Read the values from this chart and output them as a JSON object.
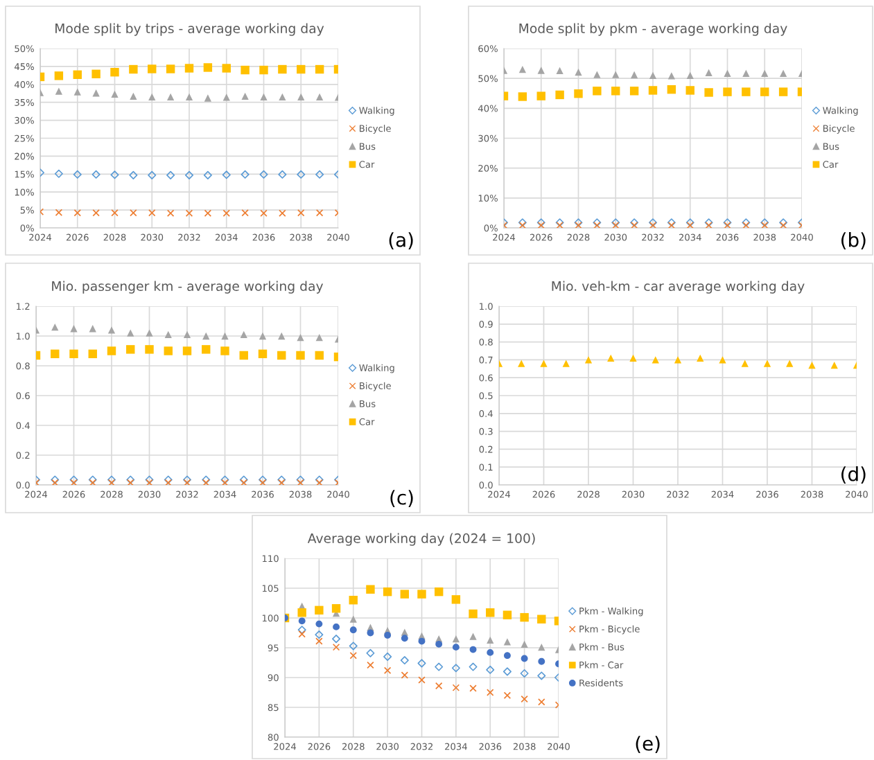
{
  "chart_data": [
    {
      "type": "scatter",
      "title": "Mode split by trips - average working day",
      "annotations": [
        "(a)"
      ],
      "x": [
        2024,
        2025,
        2026,
        2027,
        2028,
        2029,
        2030,
        2031,
        2032,
        2033,
        2034,
        2035,
        2036,
        2037,
        2038,
        2039,
        2040
      ],
      "xlim": [
        2024,
        2040
      ],
      "xticks": [
        2024,
        2026,
        2028,
        2030,
        2032,
        2034,
        2036,
        2038,
        2040
      ],
      "ylim": [
        0,
        50
      ],
      "yticks": [
        {
          "value": 0,
          "label": "0%"
        },
        {
          "value": 5,
          "label": "5%"
        },
        {
          "value": 10,
          "label": "10%"
        },
        {
          "value": 15,
          "label": "15%"
        },
        {
          "value": 20,
          "label": "20%"
        },
        {
          "value": 25,
          "label": "25%"
        },
        {
          "value": 30,
          "label": "30%"
        },
        {
          "value": 35,
          "label": "35%"
        },
        {
          "value": 40,
          "label": "40%"
        },
        {
          "value": 45,
          "label": "45%"
        },
        {
          "value": 50,
          "label": "50%"
        }
      ],
      "grid": true,
      "legend": "right",
      "series": [
        {
          "name": "Walking",
          "color": "#5b9bd5",
          "marker": "diamond",
          "values": [
            15.4,
            15.1,
            14.9,
            14.9,
            14.8,
            14.7,
            14.7,
            14.7,
            14.7,
            14.7,
            14.8,
            14.9,
            14.9,
            14.9,
            14.9,
            14.9,
            14.9
          ]
        },
        {
          "name": "Bicycle",
          "color": "#ed7d31",
          "marker": "cross",
          "values": [
            4.5,
            4.3,
            4.2,
            4.2,
            4.2,
            4.2,
            4.2,
            4.1,
            4.1,
            4.1,
            4.1,
            4.2,
            4.1,
            4.1,
            4.2,
            4.2,
            4.2
          ]
        },
        {
          "name": "Bus",
          "color": "#a5a5a5",
          "marker": "triangle",
          "values": [
            37.7,
            38.1,
            37.9,
            37.6,
            37.3,
            36.7,
            36.5,
            36.5,
            36.5,
            36.2,
            36.4,
            36.7,
            36.5,
            36.5,
            36.5,
            36.5,
            36.4
          ]
        },
        {
          "name": "Car",
          "color": "#ffc000",
          "marker": "square",
          "values": [
            42.1,
            42.4,
            42.7,
            42.9,
            43.4,
            44.2,
            44.3,
            44.3,
            44.5,
            44.7,
            44.5,
            44.0,
            44.0,
            44.2,
            44.2,
            44.2,
            44.2
          ]
        }
      ]
    },
    {
      "type": "scatter",
      "title": "Mode split by pkm - average working day",
      "annotations": [
        "(b)"
      ],
      "x": [
        2024,
        2025,
        2026,
        2027,
        2028,
        2029,
        2030,
        2031,
        2032,
        2033,
        2034,
        2035,
        2036,
        2037,
        2038,
        2039,
        2040
      ],
      "xlim": [
        2024,
        2040
      ],
      "xticks": [
        2024,
        2026,
        2028,
        2030,
        2032,
        2034,
        2036,
        2038,
        2040
      ],
      "ylim": [
        0,
        60
      ],
      "yticks": [
        {
          "value": 0,
          "label": "0%"
        },
        {
          "value": 10,
          "label": "10%"
        },
        {
          "value": 20,
          "label": "20%"
        },
        {
          "value": 30,
          "label": "30%"
        },
        {
          "value": 40,
          "label": "40%"
        },
        {
          "value": 50,
          "label": "50%"
        },
        {
          "value": 60,
          "label": "60%"
        }
      ],
      "grid": true,
      "legend": "right",
      "series": [
        {
          "name": "Walking",
          "color": "#5b9bd5",
          "marker": "diamond",
          "values": [
            1.8,
            1.8,
            1.8,
            1.8,
            1.8,
            1.8,
            1.8,
            1.8,
            1.8,
            1.8,
            1.8,
            1.8,
            1.8,
            1.8,
            1.8,
            1.8,
            1.8
          ]
        },
        {
          "name": "Bicycle",
          "color": "#ed7d31",
          "marker": "cross",
          "values": [
            0.9,
            0.9,
            0.9,
            0.9,
            0.9,
            0.9,
            0.9,
            0.9,
            0.9,
            0.9,
            0.9,
            0.9,
            0.9,
            0.9,
            0.9,
            0.9,
            0.9
          ]
        },
        {
          "name": "Bus",
          "color": "#a5a5a5",
          "marker": "triangle",
          "values": [
            52.7,
            53.0,
            52.7,
            52.6,
            52.1,
            51.3,
            51.3,
            51.2,
            51.0,
            50.9,
            51.0,
            51.9,
            51.7,
            51.7,
            51.7,
            51.7,
            51.7
          ]
        },
        {
          "name": "Car",
          "color": "#ffc000",
          "marker": "square",
          "values": [
            44.1,
            43.9,
            44.1,
            44.5,
            44.9,
            45.8,
            45.8,
            45.8,
            46.0,
            46.3,
            46.0,
            45.3,
            45.5,
            45.5,
            45.5,
            45.5,
            45.5
          ]
        }
      ]
    },
    {
      "type": "scatter",
      "title": "Mio. passenger km - average working day",
      "annotations": [
        "(c)"
      ],
      "x": [
        2024,
        2025,
        2026,
        2027,
        2028,
        2029,
        2030,
        2031,
        2032,
        2033,
        2034,
        2035,
        2036,
        2037,
        2038,
        2039,
        2040
      ],
      "xlim": [
        2024,
        2040
      ],
      "xticks": [
        2024,
        2026,
        2028,
        2030,
        2032,
        2034,
        2036,
        2038,
        2040
      ],
      "ylim": [
        0,
        1.2
      ],
      "yticks": [
        {
          "value": 0,
          "label": "0.0"
        },
        {
          "value": 0.2,
          "label": "0.2"
        },
        {
          "value": 0.4,
          "label": "0.4"
        },
        {
          "value": 0.6,
          "label": "0.6"
        },
        {
          "value": 0.8,
          "label": "0.8"
        },
        {
          "value": 1.0,
          "label": "1.0"
        },
        {
          "value": 1.2,
          "label": "1.2"
        }
      ],
      "grid": true,
      "legend": "right",
      "series": [
        {
          "name": "Walking",
          "color": "#5b9bd5",
          "marker": "diamond",
          "values": [
            0.035,
            0.035,
            0.035,
            0.035,
            0.035,
            0.035,
            0.035,
            0.035,
            0.035,
            0.035,
            0.035,
            0.035,
            0.035,
            0.035,
            0.035,
            0.035,
            0.035
          ]
        },
        {
          "name": "Bicycle",
          "color": "#ed7d31",
          "marker": "cross",
          "values": [
            0.015,
            0.015,
            0.015,
            0.015,
            0.015,
            0.015,
            0.015,
            0.015,
            0.015,
            0.015,
            0.015,
            0.015,
            0.015,
            0.015,
            0.015,
            0.015,
            0.015
          ]
        },
        {
          "name": "Bus",
          "color": "#a5a5a5",
          "marker": "triangle",
          "values": [
            1.04,
            1.06,
            1.05,
            1.05,
            1.04,
            1.02,
            1.02,
            1.01,
            1.01,
            1.0,
            1.0,
            1.01,
            1.0,
            1.0,
            0.99,
            0.99,
            0.98
          ]
        },
        {
          "name": "Car",
          "color": "#ffc000",
          "marker": "square",
          "values": [
            0.87,
            0.88,
            0.88,
            0.88,
            0.9,
            0.91,
            0.91,
            0.9,
            0.9,
            0.91,
            0.9,
            0.87,
            0.88,
            0.87,
            0.87,
            0.87,
            0.86
          ]
        }
      ]
    },
    {
      "type": "scatter",
      "title": "Mio. veh-km - car average working day",
      "annotations": [
        "(d)"
      ],
      "x": [
        2024,
        2025,
        2026,
        2027,
        2028,
        2029,
        2030,
        2031,
        2032,
        2033,
        2034,
        2035,
        2036,
        2037,
        2038,
        2039,
        2040
      ],
      "xlim": [
        2024,
        2040
      ],
      "xticks": [
        2024,
        2026,
        2028,
        2030,
        2032,
        2034,
        2036,
        2038,
        2040
      ],
      "ylim": [
        0,
        1.0
      ],
      "yticks": [
        {
          "value": 0,
          "label": "0.0"
        },
        {
          "value": 0.1,
          "label": "0.1"
        },
        {
          "value": 0.2,
          "label": "0.2"
        },
        {
          "value": 0.3,
          "label": "0.3"
        },
        {
          "value": 0.4,
          "label": "0.4"
        },
        {
          "value": 0.5,
          "label": "0.5"
        },
        {
          "value": 0.6,
          "label": "0.6"
        },
        {
          "value": 0.7,
          "label": "0.7"
        },
        {
          "value": 0.8,
          "label": "0.8"
        },
        {
          "value": 0.9,
          "label": "0.9"
        },
        {
          "value": 1.0,
          "label": "1.0"
        }
      ],
      "grid": true,
      "series": [
        {
          "color": "#ffc000",
          "marker": "triangle",
          "values": [
            0.68,
            0.68,
            0.68,
            0.68,
            0.7,
            0.71,
            0.71,
            0.7,
            0.7,
            0.71,
            0.7,
            0.68,
            0.68,
            0.68,
            0.67,
            0.67,
            0.67
          ]
        }
      ]
    },
    {
      "type": "scatter",
      "title": "Average working day (2024 = 100)",
      "annotations": [
        "(e)"
      ],
      "x": [
        2024,
        2025,
        2026,
        2027,
        2028,
        2029,
        2030,
        2031,
        2032,
        2033,
        2034,
        2035,
        2036,
        2037,
        2038,
        2039,
        2040
      ],
      "xlim": [
        2024,
        2040
      ],
      "xticks": [
        2024,
        2026,
        2028,
        2030,
        2032,
        2034,
        2036,
        2038,
        2040
      ],
      "ylim": [
        80,
        110
      ],
      "yticks": [
        80,
        85,
        90,
        95,
        100,
        105,
        110
      ],
      "grid": true,
      "legend": "right",
      "series": [
        {
          "name": "Pkm - Walking",
          "color": "#5b9bd5",
          "marker": "diamond",
          "values": [
            null,
            98.0,
            97.2,
            96.5,
            95.3,
            94.1,
            93.5,
            92.9,
            92.4,
            91.8,
            91.6,
            91.8,
            91.3,
            91.0,
            90.7,
            90.3,
            90.0
          ]
        },
        {
          "name": "Pkm - Bicycle",
          "color": "#ed7d31",
          "marker": "cross",
          "values": [
            null,
            97.3,
            96.1,
            95.1,
            93.7,
            92.1,
            91.2,
            90.4,
            89.6,
            88.6,
            88.3,
            88.2,
            87.5,
            87.0,
            86.4,
            85.9,
            85.4
          ]
        },
        {
          "name": "Pkm - Bus",
          "color": "#a5a5a5",
          "marker": "triangle",
          "values": [
            null,
            102.0,
            null,
            100.8,
            99.8,
            98.4,
            97.9,
            97.6,
            97.0,
            96.5,
            96.5,
            96.9,
            96.3,
            96.0,
            95.6,
            95.1,
            94.7
          ]
        },
        {
          "name": "Pkm - Car",
          "color": "#ffc000",
          "marker": "square",
          "values": [
            100,
            100.9,
            101.3,
            101.6,
            103.0,
            104.8,
            104.4,
            104.0,
            104.0,
            104.4,
            103.1,
            100.7,
            100.9,
            100.5,
            100.1,
            99.8,
            99.5
          ]
        },
        {
          "name": "Residents",
          "color": "#4472c4",
          "marker": "circle",
          "values": [
            100,
            99.5,
            99.0,
            98.5,
            98.0,
            97.5,
            97.1,
            96.6,
            96.1,
            95.6,
            95.1,
            94.7,
            94.2,
            93.7,
            93.2,
            92.7,
            92.3
          ]
        }
      ]
    }
  ]
}
